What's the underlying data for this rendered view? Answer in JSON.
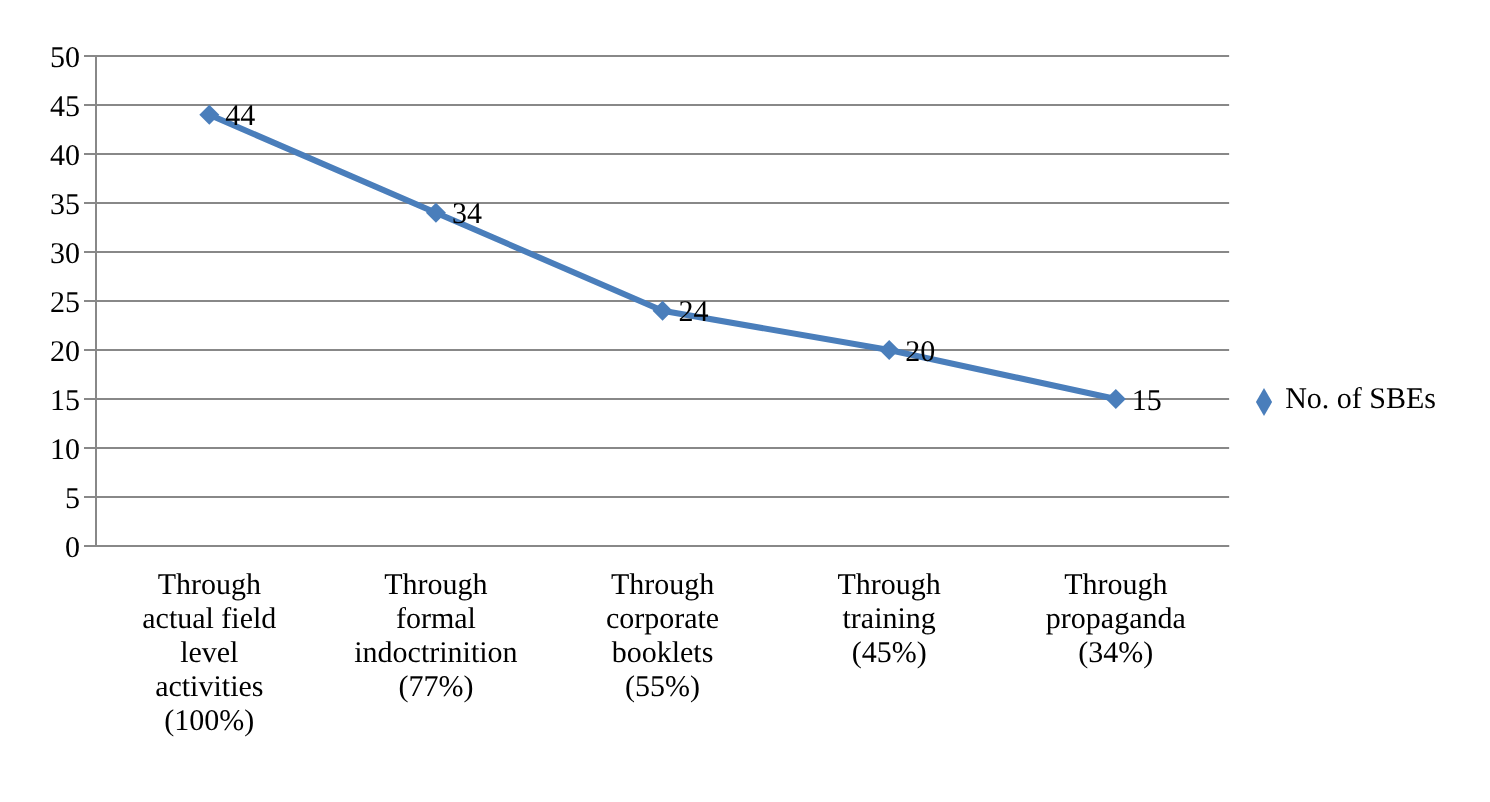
{
  "chart_data": {
    "type": "line",
    "categories": [
      "Through actual field level activities (100%)",
      "Through formal indoctrinition (77%)",
      "Through corporate booklets (55%)",
      "Through training (45%)",
      "Through propaganda (34%)"
    ],
    "series": [
      {
        "name": "No. of SBEs",
        "color": "#4a7ebb",
        "values": [
          44,
          34,
          24,
          20,
          15
        ]
      }
    ],
    "ylim": [
      0,
      50
    ],
    "yticks": [
      0,
      5,
      10,
      15,
      20,
      25,
      30,
      35,
      40,
      45,
      50
    ],
    "grid": "y",
    "legend": "right",
    "marker": "diamond",
    "line_style": "solid",
    "data_labels": true
  }
}
